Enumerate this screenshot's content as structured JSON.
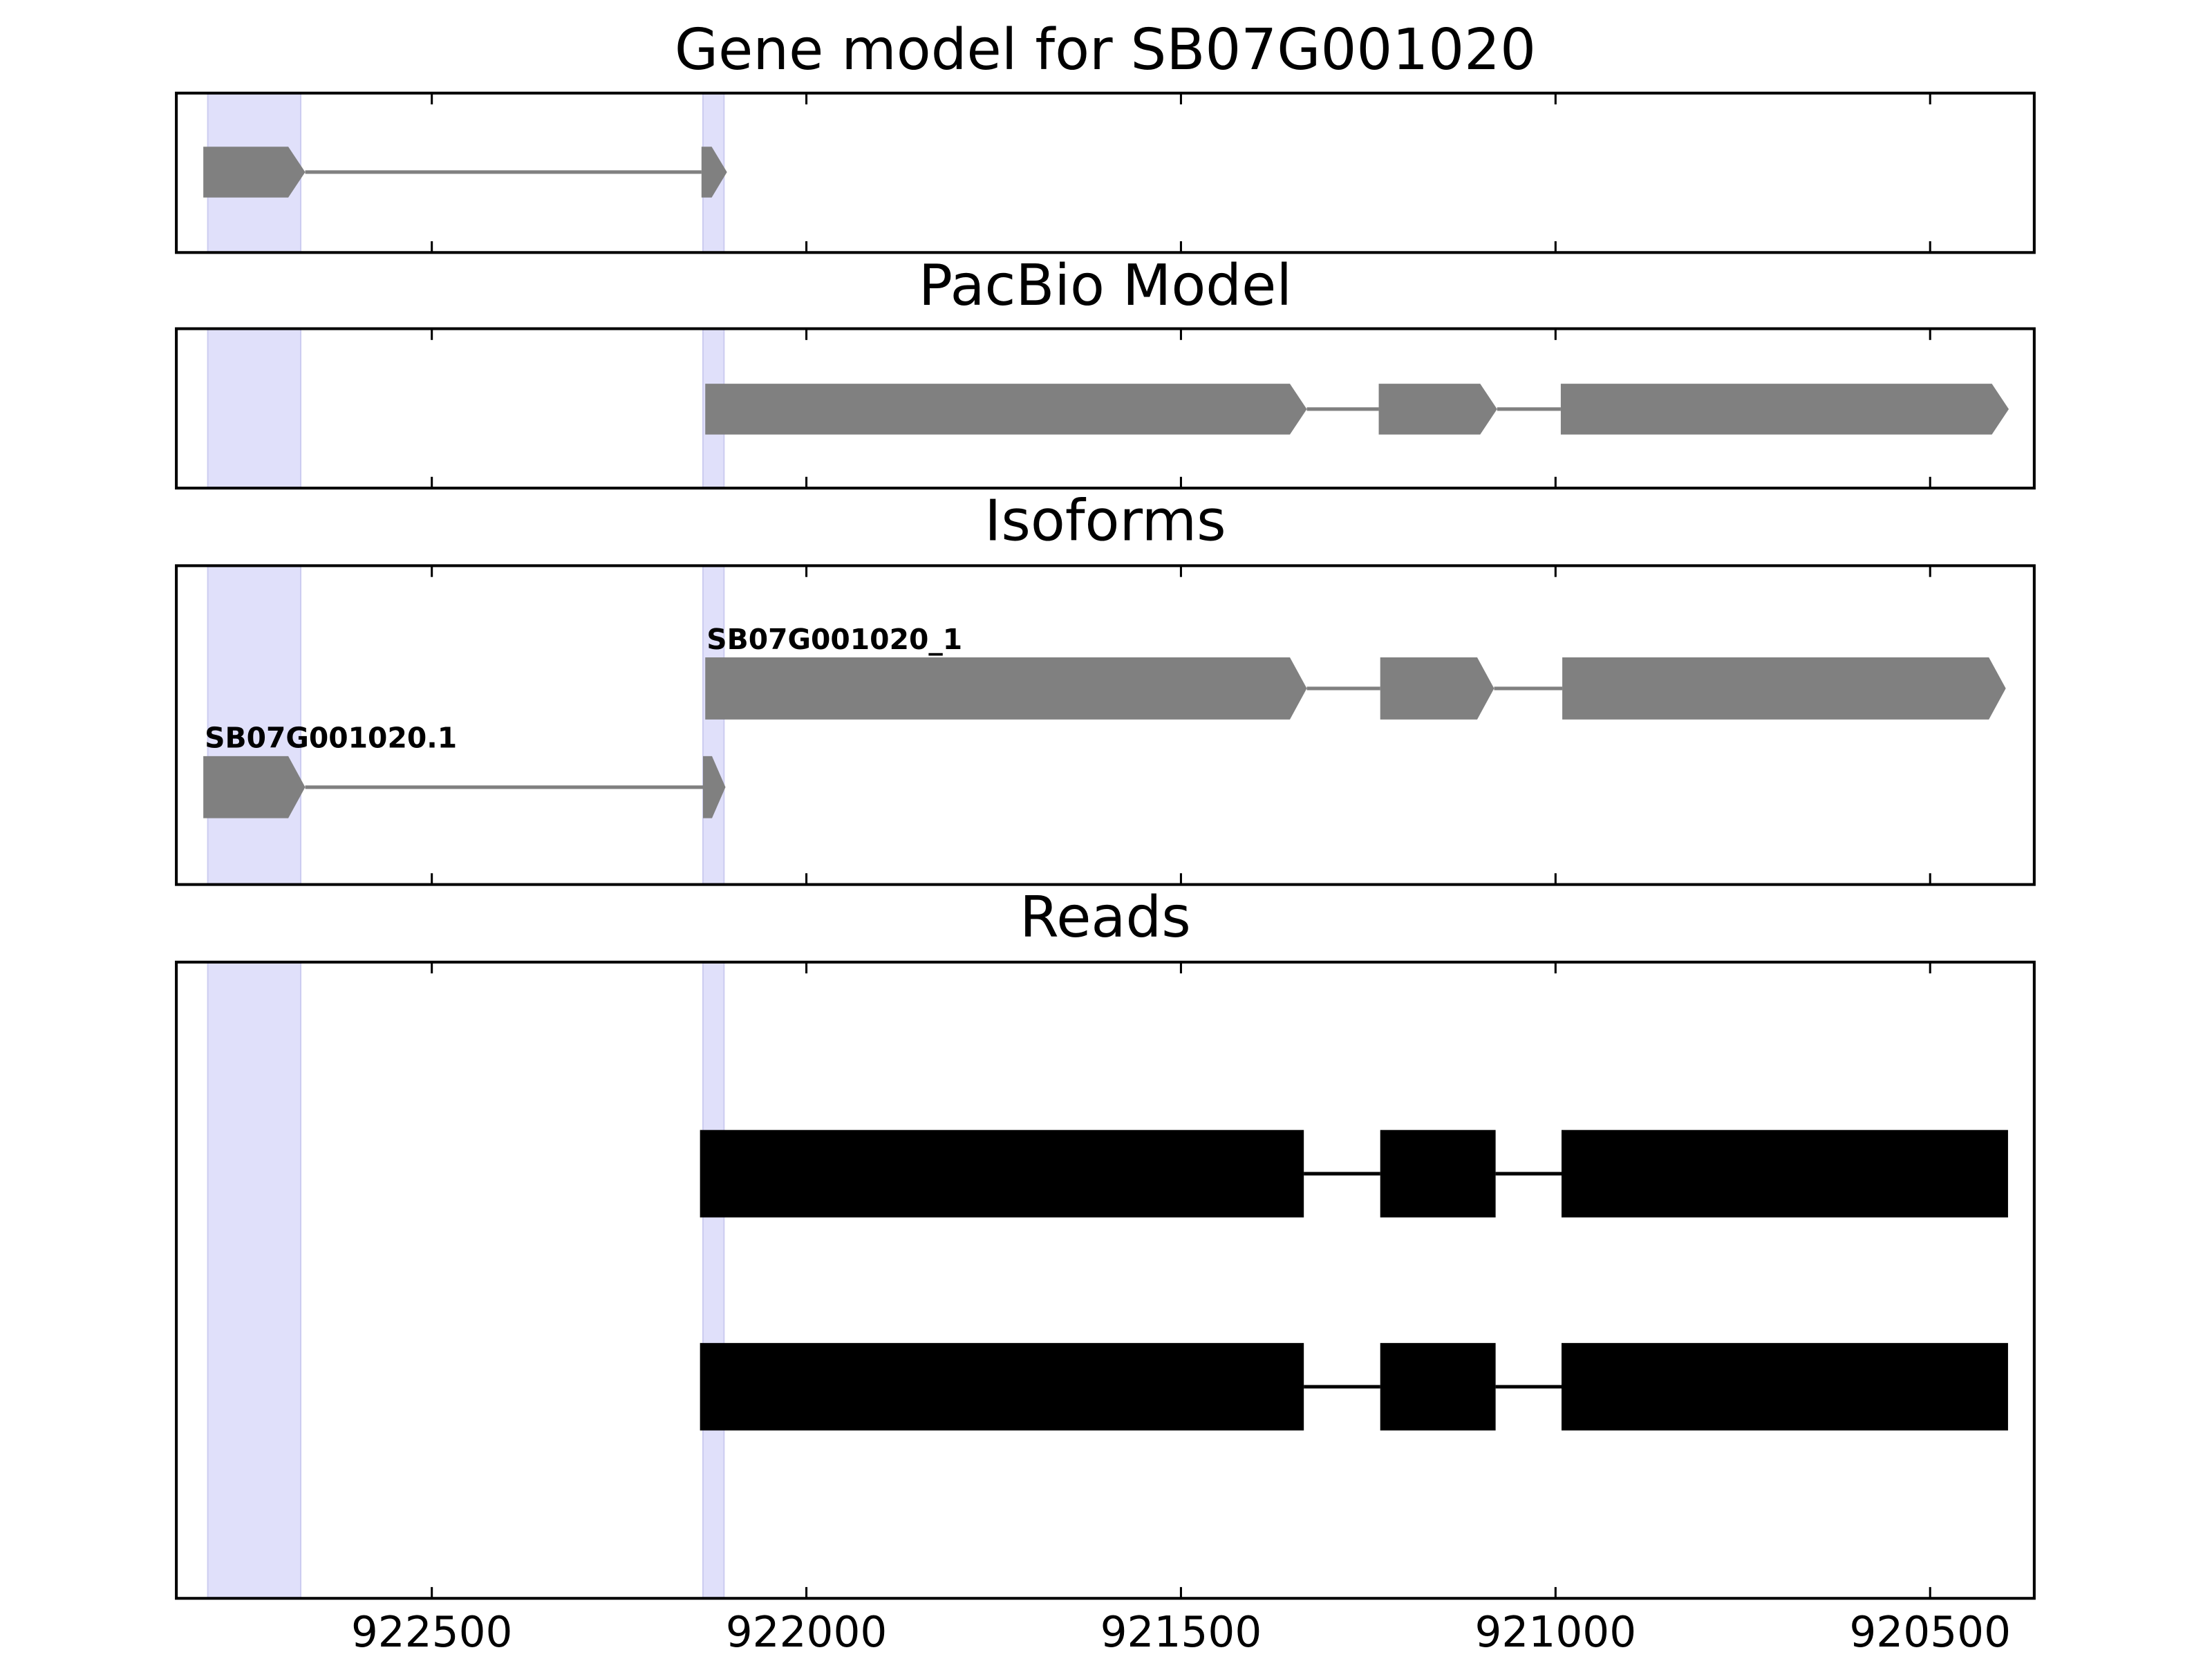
{
  "chart_data": {
    "type": "gene-tracks",
    "xlim": [
      922841,
      920361
    ],
    "xticks": [
      922500,
      922000,
      921500,
      921000,
      920500
    ],
    "highlights": [
      [
        922799,
        922675
      ],
      [
        922138,
        922110
      ]
    ],
    "highlight_color": "#e0e0fa",
    "panels": [
      {
        "title": "Gene model for SB07G001020",
        "shape": "arrow",
        "color": "#808080",
        "transcripts": [
          {
            "exons": [
              [
                922805,
                922669
              ],
              [
                922140,
                922106
              ]
            ]
          }
        ]
      },
      {
        "title": "PacBio Model",
        "shape": "arrow",
        "color": "#808080",
        "transcripts": [
          {
            "exons": [
              [
                922135,
                921332
              ],
              [
                921236,
                921078
              ],
              [
                920993,
                920395
              ]
            ]
          }
        ]
      },
      {
        "title": "Isoforms",
        "shape": "arrow",
        "color": "#808080",
        "transcripts": [
          {
            "name": "SB07G001020_1",
            "exons": [
              [
                922135,
                921332
              ],
              [
                921234,
                921082
              ],
              [
                920991,
                920399
              ]
            ]
          },
          {
            "name": "SB07G001020.1",
            "exons": [
              [
                922805,
                922669
              ],
              [
                922138,
                922108
              ]
            ]
          }
        ]
      },
      {
        "title": "Reads",
        "shape": "box",
        "color": "#000000",
        "transcripts": [
          {
            "exons": [
              [
                922142,
                921336
              ],
              [
                921234,
                921080
              ],
              [
                920992,
                920396
              ]
            ]
          },
          {
            "exons": [
              [
                922142,
                921336
              ],
              [
                921234,
                921080
              ],
              [
                920992,
                920396
              ]
            ]
          }
        ]
      }
    ]
  }
}
